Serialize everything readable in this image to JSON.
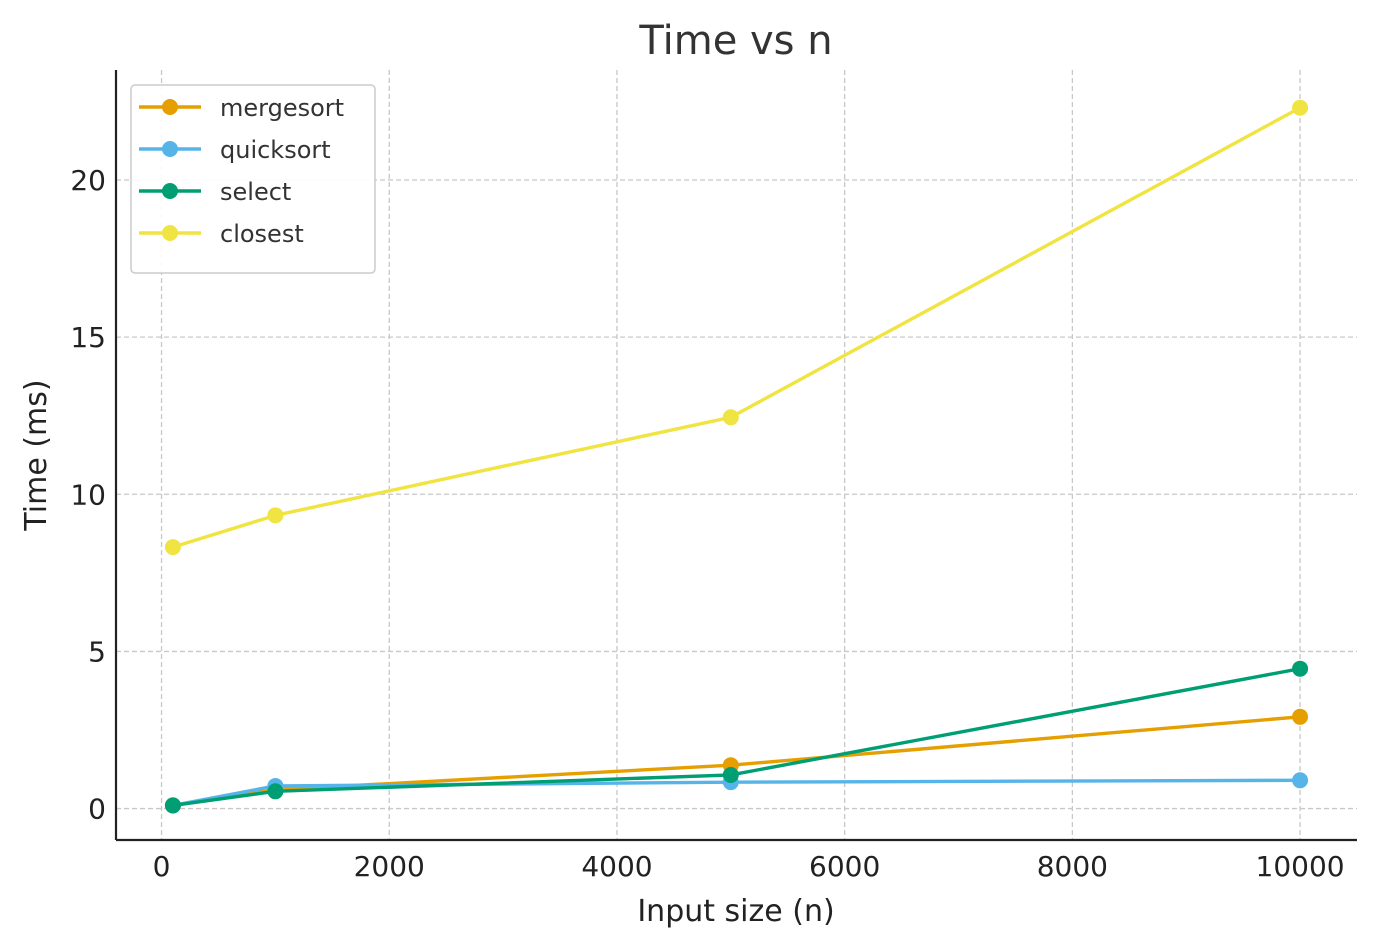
{
  "chart_data": {
    "type": "line",
    "title": "Time vs n",
    "xlabel": "Input size (n)",
    "ylabel": "Time (ms)",
    "x": [
      100,
      1000,
      5000,
      10000
    ],
    "xlim": [
      -400,
      10500
    ],
    "ylim": [
      -1.0,
      23.5
    ],
    "xticks": [
      0,
      2000,
      4000,
      6000,
      8000,
      10000
    ],
    "yticks": [
      0,
      5,
      10,
      15,
      20
    ],
    "xtick_labels": [
      "0",
      "2000",
      "4000",
      "6000",
      "8000",
      "10000"
    ],
    "ytick_labels": [
      "0",
      "5",
      "10",
      "15",
      "20"
    ],
    "grid": true,
    "legend_position": "top-left",
    "marker": "circle",
    "series": [
      {
        "name": "mergesort",
        "color": "#E69F00",
        "values": [
          0.1,
          0.6,
          1.38,
          2.92
        ]
      },
      {
        "name": "quicksort",
        "color": "#56B4E9",
        "values": [
          0.1,
          0.72,
          0.84,
          0.9
        ]
      },
      {
        "name": "select",
        "color": "#009E73",
        "values": [
          0.1,
          0.55,
          1.07,
          4.45
        ]
      },
      {
        "name": "closest",
        "color": "#F0E442",
        "values": [
          8.32,
          9.33,
          12.45,
          22.3
        ]
      }
    ]
  }
}
